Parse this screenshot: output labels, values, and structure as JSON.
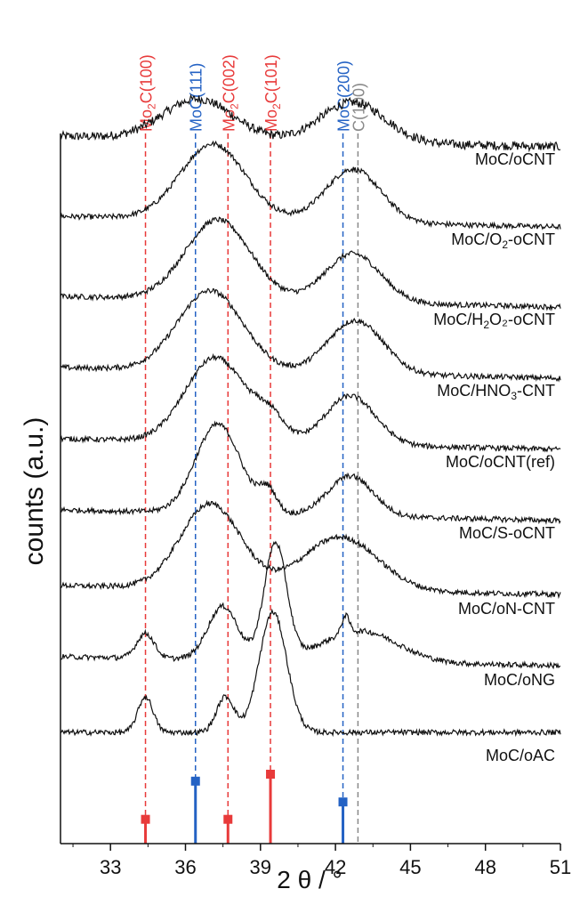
{
  "chart_data": {
    "type": "line",
    "title": "",
    "xlabel": "2 θ / °",
    "ylabel": "counts (a.u.)",
    "xlim": [
      31,
      51
    ],
    "xticks": [
      "33",
      "36",
      "39",
      "42",
      "45",
      "48",
      "51"
    ],
    "grid": false,
    "colors": {
      "mo2c": "#e83a3a",
      "moc": "#2462c4",
      "carbon": "#8a8a8a",
      "trace": "#111111"
    },
    "reference_lines": [
      {
        "name": "Mo2C(100)",
        "label_main": "Mo",
        "label_sub": "2",
        "label_rest": "C(100)",
        "x": 34.4,
        "phase": "mo2c",
        "stick_height": 0.35
      },
      {
        "name": "MoC(111)",
        "label_main": "MoC(111)",
        "label_sub": "",
        "label_rest": "",
        "x": 36.4,
        "phase": "moc",
        "stick_height": 0.9
      },
      {
        "name": "Mo2C(002)",
        "label_main": "Mo",
        "label_sub": "2",
        "label_rest": "C(002)",
        "x": 37.7,
        "phase": "mo2c",
        "stick_height": 0.35
      },
      {
        "name": "Mo2C(101)",
        "label_main": "Mo",
        "label_sub": "2",
        "label_rest": "C(101)",
        "x": 39.4,
        "phase": "mo2c",
        "stick_height": 1.0
      },
      {
        "name": "MoC(200)",
        "label_main": "MoC(200)",
        "label_sub": "",
        "label_rest": "",
        "x": 42.3,
        "phase": "moc",
        "stick_height": 0.6
      },
      {
        "name": "C(100)",
        "label_main": "C(100)",
        "label_sub": "",
        "label_rest": "",
        "x": 42.9,
        "phase": "carbon",
        "stick_height": 0
      }
    ],
    "series": [
      {
        "name": "MoC/oCNT",
        "label_main": "MoC/oCNT",
        "label_sub": "",
        "label_rest": "",
        "offset": 795,
        "baseline": 0,
        "slope": -0.6,
        "peaks": [
          [
            36.5,
            1.4,
            45
          ],
          [
            42.7,
            1.3,
            45
          ]
        ],
        "noise": 5
      },
      {
        "name": "MoC/O2-oCNT",
        "label_main": "MoC/O",
        "label_sub": "2",
        "label_rest": "-oCNT",
        "offset": 705,
        "baseline": 0,
        "slope": -0.6,
        "peaks": [
          [
            37.1,
            1.3,
            85
          ],
          [
            42.7,
            1.1,
            60
          ]
        ],
        "noise": 3
      },
      {
        "name": "MoC/H2O2-oCNT",
        "label_main": "MoC/H",
        "label_sub": "2",
        "label_rest": "O₂-oCNT",
        "offset": 615,
        "baseline": 0,
        "slope": -0.6,
        "peaks": [
          [
            37.3,
            1.3,
            90
          ],
          [
            42.7,
            1.1,
            55
          ]
        ],
        "noise": 3
      },
      {
        "name": "MoC/HNO3-CNT",
        "label_main": "MoC/HNO",
        "label_sub": "3",
        "label_rest": "-CNT",
        "offset": 535,
        "baseline": 0,
        "slope": -0.6,
        "peaks": [
          [
            37.0,
            1.3,
            90
          ],
          [
            42.8,
            1.1,
            60
          ]
        ],
        "noise": 3
      },
      {
        "name": "MoC/oCNT(ref)",
        "label_main": "MoC/oCNT(ref)",
        "label_sub": "",
        "label_rest": "",
        "offset": 455,
        "baseline": 0,
        "slope": -0.6,
        "peaks": [
          [
            37.2,
            1.2,
            95
          ],
          [
            39.4,
            0.6,
            25
          ],
          [
            42.6,
            1.0,
            55
          ]
        ],
        "noise": 3
      },
      {
        "name": "MoC/S-oCNT",
        "label_main": "MoC/S-oCNT",
        "label_sub": "",
        "label_rest": "",
        "offset": 375,
        "baseline": 0,
        "slope": -0.6,
        "peaks": [
          [
            37.3,
            0.9,
            100
          ],
          [
            39.3,
            0.35,
            25
          ],
          [
            42.6,
            0.9,
            45
          ]
        ],
        "noise": 3
      },
      {
        "name": "MoC/oN-CNT",
        "label_main": "MoC/oN-CNT",
        "label_sub": "",
        "label_rest": "",
        "offset": 290,
        "baseline": 0,
        "slope": -0.5,
        "peaks": [
          [
            37.0,
            1.2,
            95
          ],
          [
            42.2,
            1.5,
            60
          ]
        ],
        "noise": 3
      },
      {
        "name": "MoC/oNG",
        "label_main": "MoC/oNG",
        "label_sub": "",
        "label_rest": "",
        "offset": 210,
        "baseline": 0,
        "slope": -0.5,
        "peaks": [
          [
            34.4,
            0.35,
            28
          ],
          [
            37.5,
            0.6,
            60
          ],
          [
            39.6,
            0.45,
            130
          ],
          [
            42.4,
            0.15,
            20
          ],
          [
            43.0,
            1.5,
            35
          ]
        ],
        "noise": 3
      },
      {
        "name": "MoC/oAC",
        "label_main": "MoC/oAC",
        "label_sub": "",
        "label_rest": "",
        "offset": 125,
        "baseline": 0,
        "slope": 0,
        "peaks": [
          [
            34.4,
            0.3,
            40
          ],
          [
            37.6,
            0.35,
            40
          ],
          [
            39.5,
            0.55,
            135
          ]
        ],
        "noise": 3
      }
    ]
  }
}
